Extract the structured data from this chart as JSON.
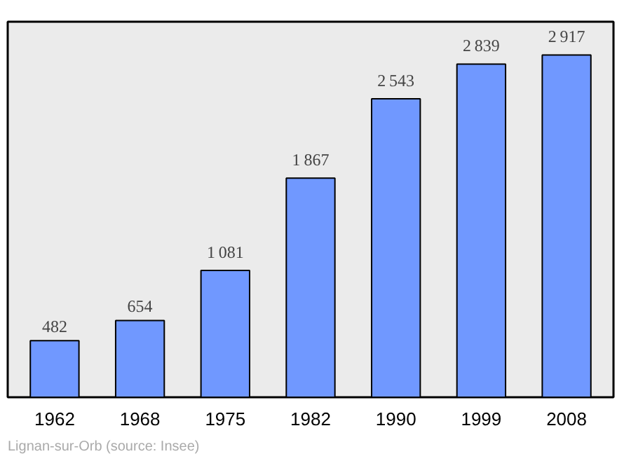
{
  "chart_data": {
    "type": "bar",
    "categories": [
      "1962",
      "1968",
      "1975",
      "1982",
      "1990",
      "1999",
      "2008"
    ],
    "values": [
      482,
      654,
      1081,
      1867,
      2543,
      2839,
      2917
    ],
    "color": "#7098ff",
    "ylim": [
      0,
      3200
    ],
    "data_labels": true,
    "grid": false,
    "annotations": [
      "Lignan-sur-Orb    (source: Insee)"
    ]
  }
}
